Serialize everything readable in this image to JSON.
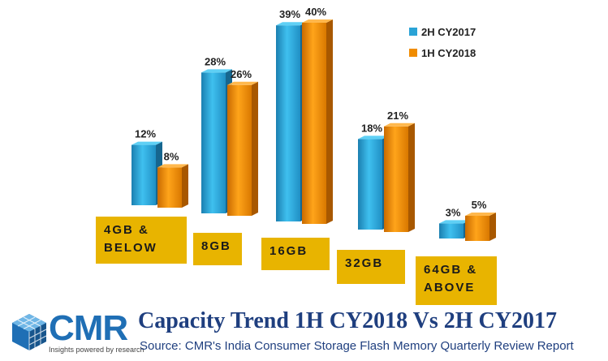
{
  "chart_data": {
    "type": "bar",
    "title": "Capacity Trend 1H CY2018 Vs 2H CY2017",
    "source": "Source: CMR's India Consumer Storage Flash Memory Quarterly Review Report",
    "categories": [
      "4GB & BELOW",
      "8GB",
      "16GB",
      "32GB",
      "64GB & ABOVE"
    ],
    "category_lines": [
      [
        "4GB &",
        "BELOW"
      ],
      [
        "8GB"
      ],
      [
        "16GB"
      ],
      [
        "32GB"
      ],
      [
        "64GB &",
        "ABOVE"
      ]
    ],
    "series": [
      {
        "name": "2H CY2017",
        "values": [
          12,
          28,
          39,
          18,
          3
        ],
        "labels": [
          "12%",
          "28%",
          "39%",
          "18%",
          "3%"
        ],
        "color": "#2aa3d6"
      },
      {
        "name": "1H CY2018",
        "values": [
          8,
          26,
          40,
          21,
          5
        ],
        "labels": [
          "8%",
          "26%",
          "40%",
          "21%",
          "5%"
        ],
        "color": "#f08c00"
      }
    ],
    "ylim": [
      0,
      40
    ],
    "legend": "top-right",
    "grid": false
  },
  "brand": {
    "logo_text": "CMR",
    "tagline": "Insights powered by research",
    "accent": "#1f6fb5",
    "category_box_color": "#e8b400"
  }
}
